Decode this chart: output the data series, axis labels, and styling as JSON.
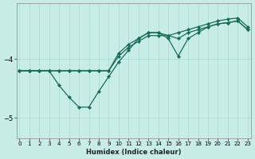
{
  "xlabel": "Humidex (Indice chaleur)",
  "background_color": "#c8ece6",
  "grid_color": "#a8d8d0",
  "line_color": "#1a6b5a",
  "x_values": [
    0,
    1,
    2,
    3,
    4,
    5,
    6,
    7,
    8,
    9,
    10,
    11,
    12,
    13,
    14,
    15,
    16,
    17,
    18,
    19,
    20,
    21,
    22,
    23
  ],
  "line_top": [
    -4.2,
    -4.2,
    -4.2,
    -4.2,
    -4.2,
    -4.2,
    -4.2,
    -4.2,
    -4.2,
    -4.2,
    -3.95,
    -3.8,
    -3.7,
    -3.6,
    -3.6,
    -3.6,
    -3.55,
    -3.5,
    -3.45,
    -3.4,
    -3.35,
    -3.32,
    -3.3,
    -3.45
  ],
  "line_mid": [
    -4.2,
    -4.2,
    -4.2,
    -4.2,
    -4.2,
    -4.2,
    -4.2,
    -4.2,
    -4.2,
    -4.2,
    -3.9,
    -3.75,
    -3.65,
    -3.55,
    -3.55,
    -3.6,
    -3.65,
    -3.55,
    -3.5,
    -3.45,
    -3.4,
    -3.38,
    -3.35,
    -3.5
  ],
  "line_bot": [
    -4.2,
    -4.2,
    -4.2,
    -4.2,
    -4.45,
    -4.65,
    -4.82,
    -4.82,
    -4.55,
    -4.3,
    -4.05,
    -3.85,
    -3.65,
    -3.55,
    -3.55,
    -3.65,
    -3.95,
    -3.65,
    -3.55,
    -3.45,
    -3.4,
    -3.38,
    -3.35,
    -3.5
  ],
  "ylim": [
    -5.35,
    -3.05
  ],
  "xlim": [
    -0.3,
    23.3
  ],
  "yticks": [
    -5,
    -4
  ],
  "xticks": [
    0,
    1,
    2,
    3,
    4,
    5,
    6,
    7,
    8,
    9,
    10,
    11,
    12,
    13,
    14,
    15,
    16,
    17,
    18,
    19,
    20,
    21,
    22,
    23
  ]
}
